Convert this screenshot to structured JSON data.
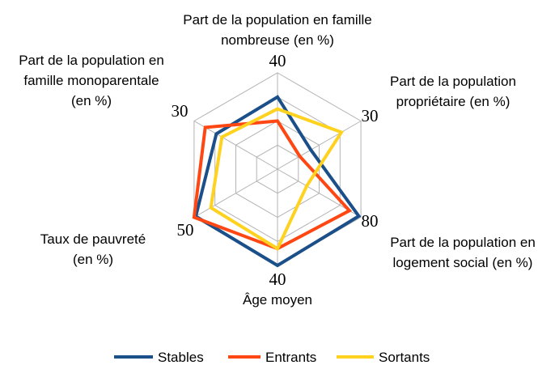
{
  "chart_data": {
    "type": "radar",
    "axes": [
      {
        "label_lines": [
          "Part de la population en famille",
          "nombreuse (en %)"
        ],
        "max_label": "40",
        "max": 40
      },
      {
        "label_lines": [
          "Part de la population",
          "propriétaire (en %)"
        ],
        "max_label": "30",
        "max": 30
      },
      {
        "label_lines": [
          "Part de la population en",
          "logement social (en %)"
        ],
        "max_label": "80",
        "max": 80
      },
      {
        "label_lines": [
          "Âge moyen"
        ],
        "max_label": "40",
        "max": 40
      },
      {
        "label_lines": [
          "Taux de pauvreté",
          "(en %)"
        ],
        "max_label": "50",
        "max": 50
      },
      {
        "label_lines": [
          "Part de la population en",
          "famille monoparentale",
          "(en %)"
        ],
        "max_label": "30",
        "max": 30
      }
    ],
    "series": [
      {
        "name": "Stables",
        "color": "#1b4f8a",
        "values": [
          30,
          12,
          78,
          40,
          49,
          22
        ]
      },
      {
        "name": "Entrants",
        "color": "#ff4713",
        "values": [
          20,
          8,
          69,
          33,
          50,
          26
        ]
      },
      {
        "name": "Sortants",
        "color": "#ffd21f",
        "values": [
          25,
          23,
          28,
          33,
          40,
          20
        ]
      }
    ],
    "grid_rings": 4,
    "legend_position": "bottom"
  }
}
